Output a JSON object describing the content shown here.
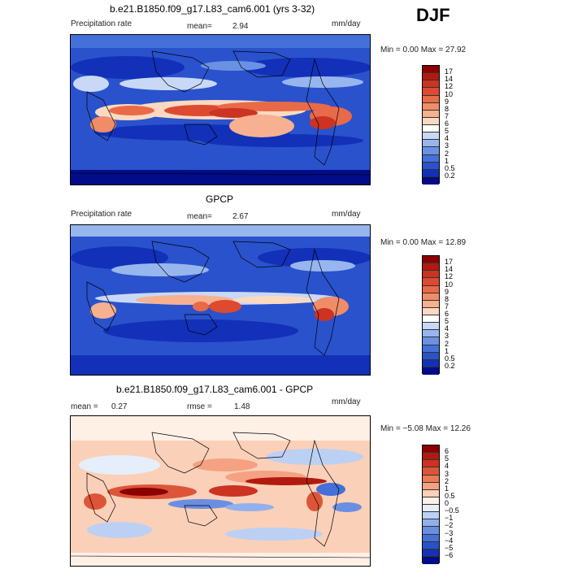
{
  "season": "DJF",
  "panels": [
    {
      "title": "b.e21.B1850.f09_g17.L83_cam6.001 (yrs 3-32)",
      "left_label": "Precipitation rate",
      "stat1_label": "mean=",
      "stat1_value": "2.94",
      "units": "mm/day",
      "range_text": "Min =    0.00 Max =  27.92",
      "kind": "abs"
    },
    {
      "title": "GPCP",
      "left_label": "Precipitation rate",
      "stat1_label": "mean=",
      "stat1_value": "2.67",
      "units": "mm/day",
      "range_text": "Min =    0.00 Max =  12.89",
      "kind": "abs"
    },
    {
      "title": "b.e21.B1850.f09_g17.L83_cam6.001 - GPCP",
      "stat1_label": "mean =",
      "stat1_value": "0.27",
      "stat2_label": "rmse =",
      "stat2_value": "1.48",
      "units": "mm/day",
      "range_text": "Min =  −5.08 Max =  12.26",
      "kind": "diff"
    }
  ],
  "colorbars": {
    "abs": {
      "ticks": [
        "17",
        "14",
        "12",
        "10",
        "9",
        "8",
        "7",
        "6",
        "5",
        "4",
        "3",
        "2",
        "1",
        "0.5",
        "0.2"
      ],
      "colors": [
        "#8b0000",
        "#b21a10",
        "#cc3322",
        "#dd4a30",
        "#e86a48",
        "#f08c68",
        "#f7b090",
        "#fbd9c0",
        "#ffffff",
        "#c8d8f6",
        "#98b6ee",
        "#6a92e4",
        "#4470da",
        "#2a52cc",
        "#1230b8",
        "#000c88"
      ]
    },
    "diff": {
      "ticks": [
        "6",
        "5",
        "4",
        "3",
        "2",
        "1",
        "0.5",
        "0",
        "−0.5",
        "−1",
        "−2",
        "−3",
        "−4",
        "−5",
        "−6"
      ],
      "colors": [
        "#8b0000",
        "#b21a10",
        "#cc3322",
        "#dd5538",
        "#ea7a58",
        "#f4a282",
        "#fbd0b8",
        "#fff0e6",
        "#e6eefc",
        "#bcd0f4",
        "#92b0ec",
        "#6a8ee2",
        "#4470d8",
        "#2a52c8",
        "#1432b4",
        "#000c88"
      ]
    }
  }
}
